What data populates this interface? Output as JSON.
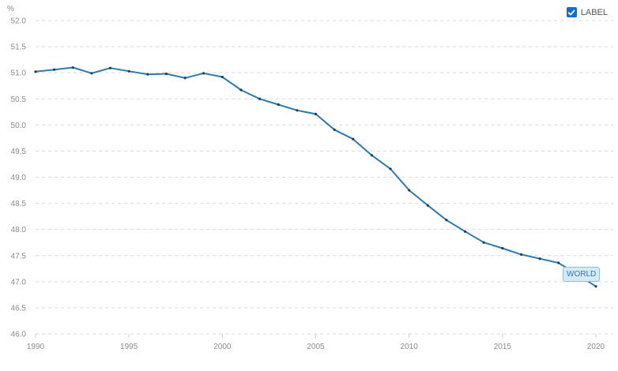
{
  "legend": {
    "label": "LABEL",
    "checked": true,
    "check_color": "#0a6fd6"
  },
  "series_tag": "WORLD",
  "colors": {
    "line": "#2a7ab5",
    "grid": "#d9d9d9",
    "tick_text": "#8a8a8a"
  },
  "chart_data": {
    "type": "line",
    "ylabel": "%",
    "xlim": [
      1990,
      2020
    ],
    "ylim": [
      46.0,
      52.0
    ],
    "x_ticks": [
      1990,
      1995,
      2000,
      2005,
      2010,
      2015,
      2020
    ],
    "y_ticks": [
      "46.0",
      "46.5",
      "47.0",
      "47.5",
      "48.0",
      "48.5",
      "49.0",
      "49.5",
      "50.0",
      "50.5",
      "51.0",
      "51.5",
      "52.0"
    ],
    "grid": true,
    "legend_position": "top-right",
    "series": [
      {
        "name": "WORLD",
        "x": [
          1990,
          1991,
          1992,
          1993,
          1994,
          1995,
          1996,
          1997,
          1998,
          1999,
          2000,
          2001,
          2002,
          2003,
          2004,
          2005,
          2006,
          2007,
          2008,
          2009,
          2010,
          2011,
          2012,
          2013,
          2014,
          2015,
          2016,
          2017,
          2018,
          2019,
          2020
        ],
        "values": [
          51.02,
          51.06,
          51.1,
          50.99,
          51.09,
          51.03,
          50.97,
          50.98,
          50.9,
          50.99,
          50.92,
          50.67,
          50.5,
          50.39,
          50.28,
          50.21,
          49.91,
          49.73,
          49.42,
          49.16,
          48.75,
          48.46,
          48.18,
          47.96,
          47.75,
          47.64,
          47.52,
          47.44,
          47.36,
          47.14,
          46.91
        ]
      }
    ]
  }
}
